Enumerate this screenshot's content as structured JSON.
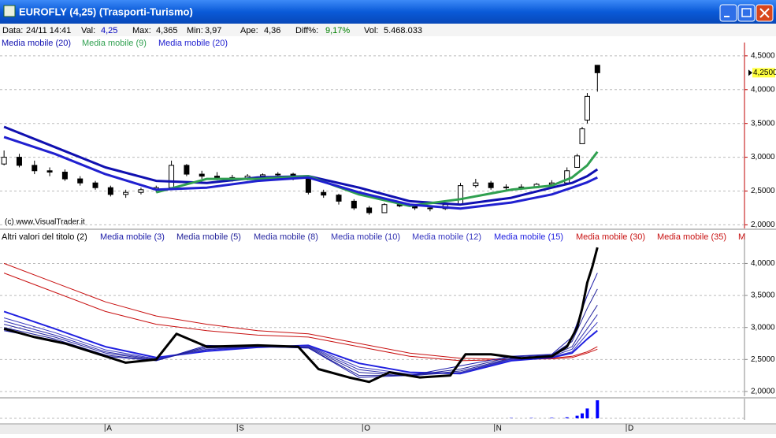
{
  "window": {
    "title": "EUROFLY (4,25)  (Trasporti-Turismo)"
  },
  "info_bar": [
    {
      "label": "Data:",
      "value": "24/11 14:41"
    },
    {
      "label": "Val:",
      "value": "4,25"
    },
    {
      "label": "Max:",
      "value": "4,365"
    },
    {
      "label": "Min:",
      "value": "3,97"
    },
    {
      "label": "Ape:",
      "value": "4,36"
    },
    {
      "label": "Diff%:",
      "value": "9,17%"
    },
    {
      "label": "Vol:",
      "value": "5.468.033"
    }
  ],
  "chart_data": [
    {
      "type": "candlestick",
      "watermark": "(c) www.VisualTrader.it",
      "xlim": [
        -0.8,
        146
      ],
      "ylim": [
        1.97,
        4.58
      ],
      "yticks": [
        {
          "value": 4.5,
          "label": "4,5000"
        },
        {
          "value": 4.0,
          "label": "4,0000"
        },
        {
          "value": 3.5,
          "label": "3,5000"
        },
        {
          "value": 3.0,
          "label": "3,0000"
        },
        {
          "value": 2.5,
          "label": "2,5000"
        },
        {
          "value": 2.0,
          "label": "2,0000"
        }
      ],
      "grid": true,
      "last_price": {
        "value": 4.25,
        "label": "4,2500"
      },
      "x": [
        0,
        3,
        6,
        9,
        12,
        15,
        18,
        21,
        24,
        27,
        30,
        33,
        36,
        39,
        42,
        45,
        48,
        51,
        54,
        57,
        60,
        63,
        66,
        69,
        72,
        75,
        78,
        81,
        84,
        87,
        90,
        93,
        96,
        99,
        102,
        105,
        108,
        111,
        113,
        114,
        115,
        117
      ],
      "open": [
        2.9,
        3.0,
        2.88,
        2.8,
        2.78,
        2.68,
        2.62,
        2.55,
        2.45,
        2.48,
        2.52,
        2.55,
        2.88,
        2.75,
        2.72,
        2.7,
        2.68,
        2.72,
        2.74,
        2.75,
        2.7,
        2.48,
        2.44,
        2.35,
        2.25,
        2.18,
        2.3,
        2.28,
        2.25,
        2.24,
        2.3,
        2.58,
        2.62,
        2.55,
        2.56,
        2.55,
        2.6,
        2.62,
        2.85,
        3.2,
        3.55,
        4.36
      ],
      "high": [
        3.1,
        3.05,
        2.95,
        2.85,
        2.82,
        2.72,
        2.65,
        2.58,
        2.52,
        2.55,
        2.58,
        2.95,
        2.9,
        2.8,
        2.78,
        2.74,
        2.75,
        2.76,
        2.78,
        2.77,
        2.72,
        2.52,
        2.46,
        2.38,
        2.28,
        2.32,
        2.34,
        2.3,
        2.28,
        2.32,
        2.62,
        2.68,
        2.65,
        2.6,
        2.6,
        2.62,
        2.66,
        2.85,
        3.05,
        3.45,
        3.95,
        4.365
      ],
      "low": [
        2.88,
        2.85,
        2.75,
        2.72,
        2.65,
        2.58,
        2.52,
        2.42,
        2.4,
        2.45,
        2.48,
        2.55,
        2.72,
        2.68,
        2.66,
        2.64,
        2.66,
        2.68,
        2.7,
        2.66,
        2.45,
        2.4,
        2.3,
        2.22,
        2.15,
        2.18,
        2.26,
        2.22,
        2.2,
        2.22,
        2.3,
        2.55,
        2.52,
        2.5,
        2.52,
        2.54,
        2.56,
        2.6,
        2.85,
        3.2,
        3.5,
        3.97
      ],
      "close": [
        3.0,
        2.88,
        2.8,
        2.78,
        2.68,
        2.62,
        2.55,
        2.45,
        2.48,
        2.52,
        2.55,
        2.88,
        2.75,
        2.72,
        2.7,
        2.68,
        2.72,
        2.74,
        2.75,
        2.7,
        2.48,
        2.44,
        2.35,
        2.25,
        2.18,
        2.3,
        2.28,
        2.25,
        2.24,
        2.3,
        2.58,
        2.62,
        2.55,
        2.56,
        2.55,
        2.6,
        2.62,
        2.8,
        3.02,
        3.42,
        3.9,
        4.25
      ],
      "series": [
        {
          "name": "Media mobile (20)",
          "color": "#1010b0",
          "x": [
            0,
            10,
            20,
            30,
            40,
            50,
            60,
            70,
            80,
            90,
            100,
            108,
            112,
            115,
            117
          ],
          "values": [
            3.45,
            3.15,
            2.85,
            2.65,
            2.62,
            2.7,
            2.72,
            2.55,
            2.35,
            2.3,
            2.4,
            2.55,
            2.62,
            2.72,
            2.82
          ]
        },
        {
          "name": "Media mobile (9)",
          "color": "#30a050",
          "x": [
            0,
            10,
            20,
            30,
            40,
            50,
            60,
            70,
            80,
            90,
            100,
            108,
            112,
            115,
            117
          ],
          "values": [
            null,
            null,
            null,
            2.48,
            2.68,
            2.68,
            2.72,
            2.45,
            2.28,
            2.38,
            2.52,
            2.58,
            2.7,
            2.88,
            3.08
          ]
        },
        {
          "name": "Media mobile (20)",
          "color": "#2020d0",
          "x": [
            0,
            10,
            20,
            30,
            40,
            50,
            60,
            70,
            80,
            90,
            100,
            108,
            112,
            115,
            117
          ],
          "values": [
            3.3,
            3.05,
            2.75,
            2.52,
            2.55,
            2.65,
            2.7,
            2.48,
            2.3,
            2.24,
            2.33,
            2.45,
            2.55,
            2.63,
            2.7
          ]
        }
      ]
    },
    {
      "type": "line",
      "xlim": [
        -0.8,
        146
      ],
      "ylim": [
        1.95,
        4.35
      ],
      "yticks": [
        {
          "value": 4.0,
          "label": "4,0000"
        },
        {
          "value": 3.5,
          "label": "3,5000"
        },
        {
          "value": 3.0,
          "label": "3,0000"
        },
        {
          "value": 2.5,
          "label": "2,5000"
        },
        {
          "value": 2.0,
          "label": "2,0000"
        }
      ],
      "grid": true,
      "legend_overflow": "M",
      "series": [
        {
          "name": "Altri valori del titolo (2)",
          "color": "#000000",
          "width": 3,
          "x": [
            0,
            6,
            12,
            18,
            24,
            30,
            34,
            40,
            50,
            58,
            62,
            68,
            72,
            76,
            82,
            88,
            91,
            96,
            102,
            108,
            111,
            113,
            114,
            115,
            116,
            117
          ],
          "values": [
            2.98,
            2.85,
            2.75,
            2.6,
            2.45,
            2.5,
            2.9,
            2.7,
            2.72,
            2.7,
            2.35,
            2.22,
            2.15,
            2.3,
            2.22,
            2.25,
            2.58,
            2.58,
            2.52,
            2.55,
            2.7,
            3.0,
            3.3,
            3.7,
            3.95,
            4.25
          ]
        },
        {
          "name": "Media mobile (3)",
          "color": "#1a1aa8",
          "width": 1,
          "x": [
            0,
            10,
            20,
            30,
            40,
            50,
            60,
            70,
            80,
            90,
            100,
            108,
            112,
            115,
            117
          ],
          "values": [
            2.95,
            2.8,
            2.55,
            2.48,
            2.72,
            2.7,
            2.68,
            2.22,
            2.25,
            2.4,
            2.55,
            2.58,
            2.85,
            3.5,
            3.85
          ]
        },
        {
          "name": "Media mobile (5)",
          "color": "#202098",
          "width": 1,
          "x": [
            0,
            10,
            20,
            30,
            40,
            50,
            60,
            70,
            80,
            90,
            100,
            108,
            112,
            115,
            117
          ],
          "values": [
            3.0,
            2.82,
            2.57,
            2.48,
            2.7,
            2.7,
            2.68,
            2.25,
            2.25,
            2.35,
            2.54,
            2.57,
            2.78,
            3.3,
            3.6
          ]
        },
        {
          "name": "Media mobile (8)",
          "color": "#2828a0",
          "width": 1,
          "x": [
            0,
            10,
            20,
            30,
            40,
            50,
            60,
            70,
            80,
            90,
            100,
            108,
            112,
            115,
            117
          ],
          "values": [
            3.05,
            2.85,
            2.6,
            2.49,
            2.68,
            2.7,
            2.69,
            2.3,
            2.24,
            2.32,
            2.52,
            2.56,
            2.7,
            3.1,
            3.35
          ]
        },
        {
          "name": "Media mobile (10)",
          "color": "#3030b0",
          "width": 1,
          "x": [
            0,
            10,
            20,
            30,
            40,
            50,
            60,
            70,
            80,
            90,
            100,
            108,
            112,
            115,
            117
          ],
          "values": [
            3.1,
            2.88,
            2.62,
            2.5,
            2.66,
            2.7,
            2.7,
            2.34,
            2.25,
            2.3,
            2.51,
            2.55,
            2.66,
            2.98,
            3.2
          ]
        },
        {
          "name": "Media mobile (12)",
          "color": "#3838c0",
          "width": 1,
          "x": [
            0,
            10,
            20,
            30,
            40,
            50,
            60,
            70,
            80,
            90,
            100,
            108,
            112,
            115,
            117
          ],
          "values": [
            3.15,
            2.92,
            2.65,
            2.51,
            2.65,
            2.7,
            2.71,
            2.38,
            2.27,
            2.29,
            2.5,
            2.54,
            2.62,
            2.9,
            3.08
          ]
        },
        {
          "name": "Media mobile (15)",
          "color": "#2020e0",
          "width": 2,
          "x": [
            0,
            10,
            20,
            30,
            40,
            50,
            60,
            70,
            80,
            90,
            100,
            108,
            112,
            115,
            117
          ],
          "values": [
            3.25,
            2.98,
            2.7,
            2.53,
            2.63,
            2.69,
            2.72,
            2.44,
            2.3,
            2.28,
            2.48,
            2.53,
            2.6,
            2.82,
            2.95
          ]
        },
        {
          "name": "Media mobile (30)",
          "color": "#c81010",
          "width": 1,
          "x": [
            0,
            10,
            20,
            30,
            40,
            50,
            60,
            70,
            80,
            90,
            100,
            108,
            112,
            115,
            117
          ],
          "values": [
            3.85,
            3.55,
            3.25,
            3.05,
            2.95,
            2.88,
            2.85,
            2.7,
            2.55,
            2.48,
            2.5,
            2.52,
            2.55,
            2.62,
            2.7
          ]
        },
        {
          "name": "Media mobile (35)",
          "color": "#c81010",
          "width": 1,
          "x": [
            0,
            10,
            20,
            30,
            40,
            50,
            60,
            70,
            80,
            90,
            100,
            108,
            112,
            115,
            117
          ],
          "values": [
            4.0,
            3.7,
            3.4,
            3.18,
            3.05,
            2.95,
            2.9,
            2.75,
            2.6,
            2.52,
            2.5,
            2.51,
            2.53,
            2.6,
            2.66
          ]
        }
      ]
    },
    {
      "type": "bar",
      "xlim": [
        -0.8,
        146
      ],
      "ylim": [
        0,
        5.5
      ],
      "color": "#0000ff",
      "x": [
        100,
        104,
        108,
        111,
        113,
        114,
        115,
        117
      ],
      "values": [
        0.1,
        0.1,
        0.15,
        0.3,
        0.8,
        1.5,
        3.0,
        5.468033
      ],
      "xticks": [
        {
          "value": 19.9,
          "label": "A"
        },
        {
          "value": 46,
          "label": "S"
        },
        {
          "value": 70.7,
          "label": "O"
        },
        {
          "value": 96.7,
          "label": "N"
        },
        {
          "value": 122.7,
          "label": "D"
        }
      ]
    }
  ]
}
